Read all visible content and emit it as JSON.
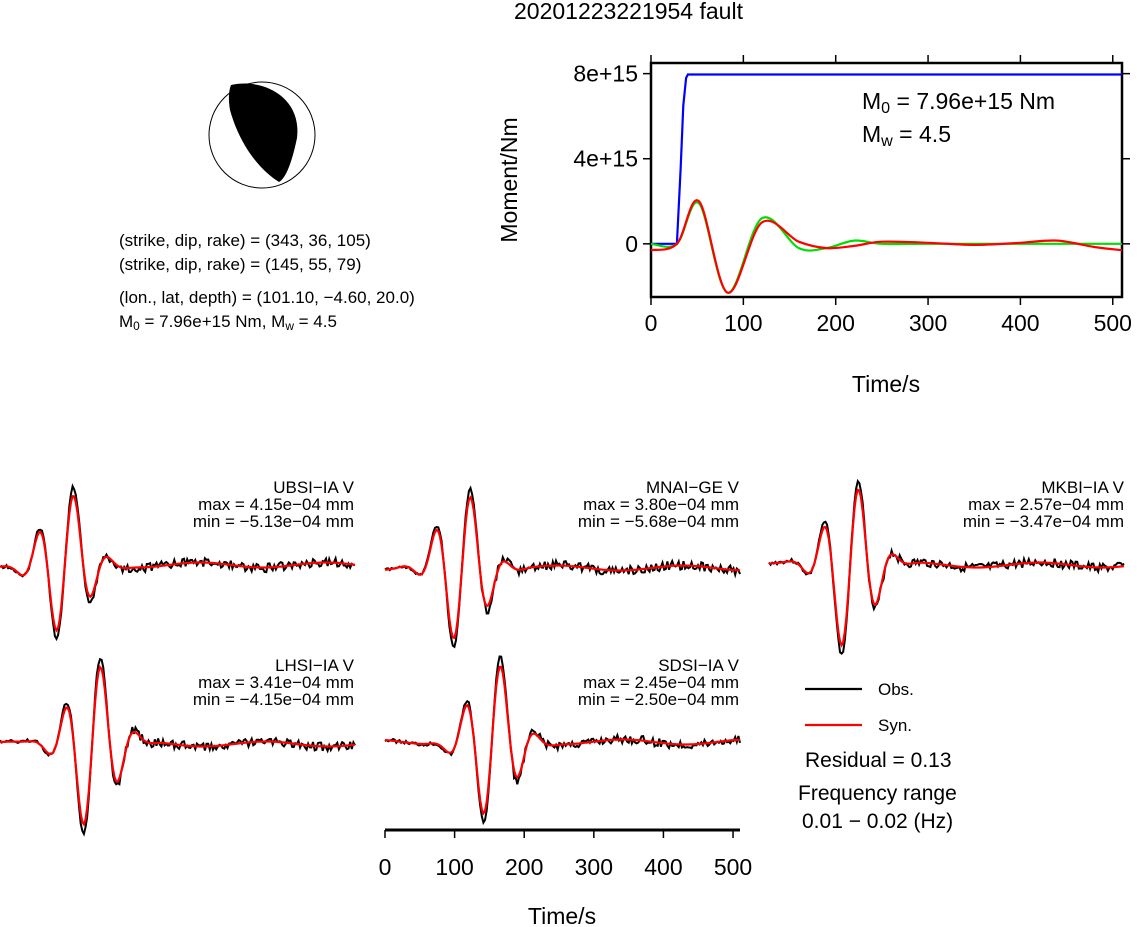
{
  "title": "20201223221954 fault",
  "beachball": {
    "nodal_plane_1": "(strike, dip, rake) = (343, 36, 105)",
    "nodal_plane_2": "(strike, dip, rake) = (145, 55, 79)",
    "location": "(lon., lat, depth) = (101.10, −4.60, 20.0)",
    "moment_prefix": "M",
    "moment_sub": "0",
    "moment_rest": " = 7.96e+15 Nm, M",
    "mw_sub": "w",
    "mw_rest": " = 4.5"
  },
  "moment_plot": {
    "m0_prefix": "M",
    "m0_sub": "0",
    "m0_rest": " = 7.96e+15 Nm",
    "mw_prefix": "M",
    "mw_sub": "w",
    "mw_rest": " = 4.5",
    "colors": {
      "cumulative": "#0000ff",
      "rate_a": "#00dd00",
      "rate_b": "#ff0000"
    }
  },
  "stations": [
    {
      "name": "UBSI−IA V",
      "max": "max = 4.15e−04 mm",
      "min": "min = −5.13e−04 mm"
    },
    {
      "name": "MNAI−GE V",
      "max": "max = 3.80e−04 mm",
      "min": "min = −5.68e−04 mm"
    },
    {
      "name": "MKBI−IA V",
      "max": "max = 2.57e−04 mm",
      "min": "min = −3.47e−04 mm"
    },
    {
      "name": "LHSI−IA V",
      "max": "max = 3.41e−04 mm",
      "min": "min = −4.15e−04 mm"
    },
    {
      "name": "SDSI−IA V",
      "max": "max = 2.45e−04 mm",
      "min": "min = −2.50e−04 mm"
    }
  ],
  "legend": {
    "obs": "Obs.",
    "syn": "Syn.",
    "obs_color": "#000000",
    "syn_color": "#ff0000"
  },
  "residual": "Residual = 0.13",
  "freq_label": "Frequency range",
  "freq_value": "0.01 − 0.02 (Hz)",
  "chart_data": [
    {
      "type": "line",
      "title": "",
      "xlabel": "Time/s",
      "ylabel": "Moment/Nm",
      "xlim": [
        0,
        510
      ],
      "ylim": [
        -2500000000000000.0,
        8500000000000000.0
      ],
      "x_ticks": [
        0,
        100,
        200,
        300,
        400,
        500
      ],
      "x_tick_labels": [
        "0",
        "100",
        "200",
        "300",
        "400",
        "500"
      ],
      "y_ticks": [
        0,
        4000000000000000.0,
        8000000000000000.0
      ],
      "y_tick_labels": [
        "0",
        "4e+15",
        "8e+15"
      ],
      "series": [
        {
          "color": "#0000ff",
          "x": [
            0,
            28,
            32,
            35,
            38,
            40,
            42,
            45,
            510
          ],
          "y": [
            0,
            0,
            3500000000000000.0,
            6500000000000000.0,
            7800000000000000.0,
            7960000000000000.0,
            7960000000000000.0,
            7960000000000000.0,
            7960000000000000.0
          ]
        },
        {
          "color": "#00dd00",
          "x": [
            0,
            28,
            52,
            83,
            120,
            160,
            190,
            220,
            250,
            300,
            510
          ],
          "y": [
            0,
            0,
            1900000000000000.0,
            -2300000000000000.0,
            1200000000000000.0,
            -200000000000000.0,
            -200000000000000.0,
            150000000000000.0,
            0,
            0,
            0
          ]
        },
        {
          "color": "#ff0000",
          "x": [
            0,
            28,
            52,
            83,
            120,
            160,
            190,
            220,
            250,
            300,
            350,
            400,
            440,
            480,
            510
          ],
          "y": [
            -300000000000000.0,
            0,
            2000000000000000.0,
            -2300000000000000.0,
            1000000000000000.0,
            100000000000000.0,
            -200000000000000.0,
            -100000000000000.0,
            100000000000000.0,
            50000000000000.0,
            -50000000000000.0,
            50000000000000.0,
            150000000000000.0,
            -150000000000000.0,
            -300000000000000.0
          ]
        }
      ]
    },
    {
      "type": "line",
      "title": "",
      "xlabel": "Time/s",
      "xlim": [
        0,
        510
      ],
      "x_ticks": [
        0,
        100,
        200,
        300,
        400,
        500
      ],
      "x_tick_labels": [
        "0",
        "100",
        "200",
        "300",
        "400",
        "500"
      ],
      "series": [
        {
          "name": "Obs.",
          "color": "#000000"
        },
        {
          "name": "Syn.",
          "color": "#ff0000"
        }
      ],
      "panels": [
        {
          "station": "UBSI−IA V",
          "max": 0.000415,
          "min": -0.000513
        },
        {
          "station": "MNAI−GE V",
          "max": 0.00038,
          "min": -0.000568
        },
        {
          "station": "MKBI−IA V",
          "max": 0.000257,
          "min": -0.000347
        },
        {
          "station": "LHSI−IA V",
          "max": 0.000341,
          "min": -0.000415
        },
        {
          "station": "SDSI−IA V",
          "max": 0.000245,
          "min": -0.00025
        }
      ]
    }
  ]
}
